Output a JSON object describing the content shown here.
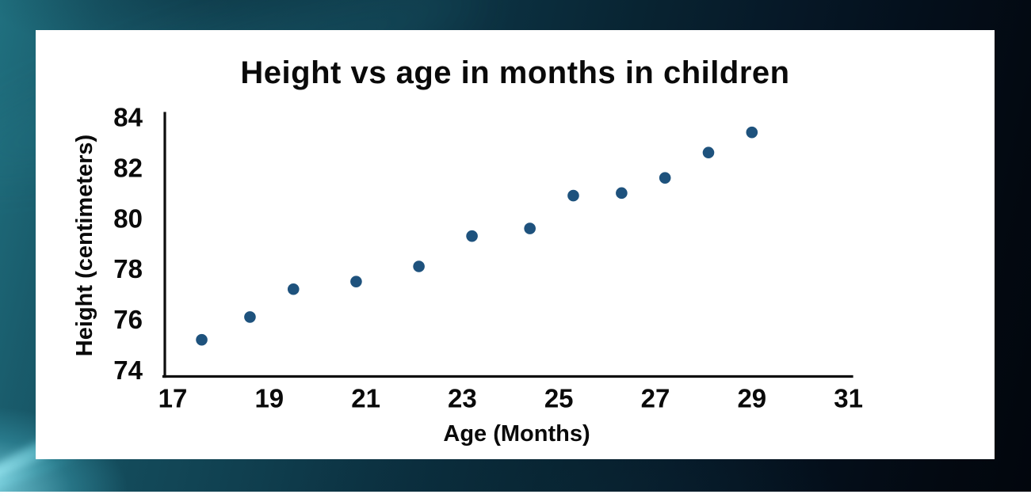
{
  "page": {
    "background_teal": "#134a5a",
    "background_dark": "#04101c",
    "accent_cyan_streak": "#8ce4f2",
    "card_background": "#ffffff"
  },
  "chart_data": {
    "type": "scatter",
    "title": "Height vs age in months in children",
    "xlabel": "Age (Months)",
    "ylabel": "Height (centimeters)",
    "x_ticks": [
      17,
      19,
      21,
      23,
      25,
      27,
      29,
      31
    ],
    "y_ticks": [
      84,
      82,
      80,
      78,
      76,
      74
    ],
    "xlim": [
      17,
      31
    ],
    "ylim": [
      74,
      84
    ],
    "grid": false,
    "legend": false,
    "marker": "circle",
    "point_color": "#1e527d",
    "axis_color": "#0d0d0d",
    "text_color": "#0a0a0a",
    "points": [
      {
        "x": 17.6,
        "y": 75.2
      },
      {
        "x": 18.6,
        "y": 76.1
      },
      {
        "x": 19.5,
        "y": 77.2
      },
      {
        "x": 20.8,
        "y": 77.5
      },
      {
        "x": 22.1,
        "y": 78.1
      },
      {
        "x": 23.2,
        "y": 79.3
      },
      {
        "x": 24.4,
        "y": 79.6
      },
      {
        "x": 25.3,
        "y": 80.9
      },
      {
        "x": 26.3,
        "y": 81.0
      },
      {
        "x": 27.2,
        "y": 81.6
      },
      {
        "x": 28.1,
        "y": 82.6
      },
      {
        "x": 29.0,
        "y": 83.4
      }
    ]
  }
}
